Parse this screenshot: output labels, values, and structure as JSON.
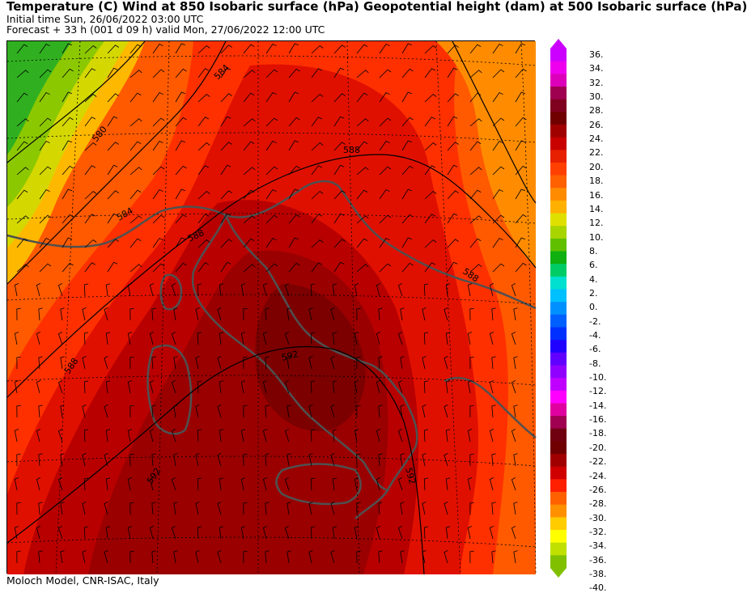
{
  "header": {
    "title": "Temperature (C) Wind  at 850 Isobaric surface (hPa) Geopotential height (dam)  at 500 Isobaric surface (hPa)",
    "initial_time": "Initial time  Sun, 26/06/2022  03:00 UTC",
    "forecast": "Forecast  +  33 h  (001 d 09 h)  valid Mon, 27/06/2022 12:00 UTC"
  },
  "footer": {
    "credit": "Moloch Model, CNR-ISAC, Italy"
  },
  "map": {
    "contour_labels": [
      "584",
      "580",
      "584",
      "588",
      "588",
      "588",
      "592",
      "588",
      "592",
      "592"
    ]
  },
  "colorbar": {
    "labels": [
      "36.",
      "34.",
      "32.",
      "30.",
      "28.",
      "26.",
      "24.",
      "22.",
      "20.",
      "18.",
      "16.",
      "14.",
      "12.",
      "10.",
      "8.",
      "6.",
      "4.",
      "2.",
      "0.",
      "-2.",
      "-4.",
      "-6.",
      "-8.",
      "-10.",
      "-12.",
      "-14.",
      "-16.",
      "-18.",
      "-20.",
      "-22.",
      "-24.",
      "-26.",
      "-28.",
      "-30.",
      "-32.",
      "-34.",
      "-36.",
      "-38.",
      "-40."
    ],
    "colors": [
      "#cc00ff",
      "#ee00ee",
      "#dd00bb",
      "#a00050",
      "#800020",
      "#700000",
      "#a00000",
      "#c80000",
      "#e62000",
      "#ff4000",
      "#ff6000",
      "#ff8c00",
      "#ffb000",
      "#e0e000",
      "#a8d400",
      "#60c000",
      "#10b010",
      "#00cc66",
      "#00e0d0",
      "#00c0ff",
      "#0090ff",
      "#0060ff",
      "#0030ff",
      "#2000ff",
      "#6000ff",
      "#9000ff",
      "#c000ff",
      "#ff00ff",
      "#e000a0",
      "#a00050",
      "#700010",
      "#700000",
      "#a00000",
      "#d00000",
      "#ff2000",
      "#ff6000",
      "#ff9000",
      "#ffcc00",
      "#ffff00",
      "#c0e000",
      "#80c000"
    ]
  }
}
